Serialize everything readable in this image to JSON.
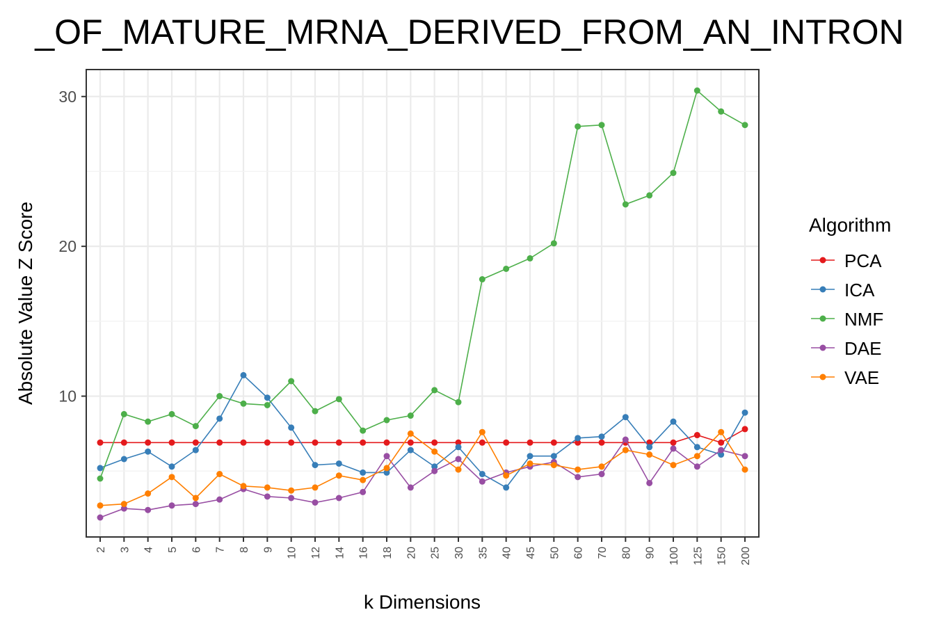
{
  "chart_data": {
    "type": "line",
    "title": "_OF_MATURE_MRNA_DERIVED_FROM_AN_INTRON",
    "xlabel": "k Dimensions",
    "ylabel": "Absolute Value Z Score",
    "categories": [
      "2",
      "3",
      "4",
      "5",
      "6",
      "7",
      "8",
      "9",
      "10",
      "12",
      "14",
      "16",
      "18",
      "20",
      "25",
      "30",
      "35",
      "40",
      "45",
      "50",
      "60",
      "70",
      "80",
      "90",
      "100",
      "125",
      "150",
      "200"
    ],
    "ylim": [
      0.6,
      31.8
    ],
    "yticks": [
      10,
      20,
      30
    ],
    "grid": true,
    "legend": {
      "title": "Algorithm",
      "position": "right"
    },
    "series": [
      {
        "name": "PCA",
        "color": "#E41A1C",
        "values": [
          6.9,
          6.9,
          6.9,
          6.9,
          6.9,
          6.9,
          6.9,
          6.9,
          6.9,
          6.9,
          6.9,
          6.9,
          6.9,
          6.9,
          6.9,
          6.9,
          6.9,
          6.9,
          6.9,
          6.9,
          6.9,
          6.9,
          6.9,
          6.9,
          6.9,
          7.4,
          6.9,
          7.8
        ]
      },
      {
        "name": "ICA",
        "color": "#377EB8",
        "values": [
          5.2,
          5.8,
          6.3,
          5.3,
          6.4,
          8.5,
          11.4,
          9.9,
          7.9,
          5.4,
          5.5,
          4.9,
          4.9,
          6.4,
          5.3,
          6.6,
          4.8,
          3.9,
          6.0,
          6.0,
          7.2,
          7.3,
          8.6,
          6.6,
          8.3,
          6.6,
          6.1,
          8.9
        ]
      },
      {
        "name": "NMF",
        "color": "#4DAF4A",
        "values": [
          4.5,
          8.8,
          8.3,
          8.8,
          8.0,
          10.0,
          9.5,
          9.4,
          11.0,
          9.0,
          9.8,
          7.7,
          8.4,
          8.7,
          10.4,
          9.6,
          17.8,
          18.5,
          19.2,
          20.2,
          28.0,
          28.1,
          22.8,
          23.4,
          24.9,
          30.4,
          29.0,
          28.1
        ]
      },
      {
        "name": "DAE",
        "color": "#984EA3",
        "values": [
          1.9,
          2.5,
          2.4,
          2.7,
          2.8,
          3.1,
          3.8,
          3.3,
          3.2,
          2.9,
          3.2,
          3.6,
          6.0,
          3.9,
          5.0,
          5.8,
          4.3,
          4.9,
          5.3,
          5.6,
          4.6,
          4.8,
          7.1,
          4.2,
          6.5,
          5.3,
          6.4,
          6.0
        ]
      },
      {
        "name": "VAE",
        "color": "#FF7F00",
        "values": [
          2.7,
          2.8,
          3.5,
          4.6,
          3.2,
          4.8,
          4.0,
          3.9,
          3.7,
          3.9,
          4.7,
          4.4,
          5.2,
          7.5,
          6.3,
          5.1,
          7.6,
          4.7,
          5.5,
          5.4,
          5.1,
          5.3,
          6.4,
          6.1,
          5.4,
          6.0,
          7.6,
          5.1
        ]
      }
    ]
  }
}
